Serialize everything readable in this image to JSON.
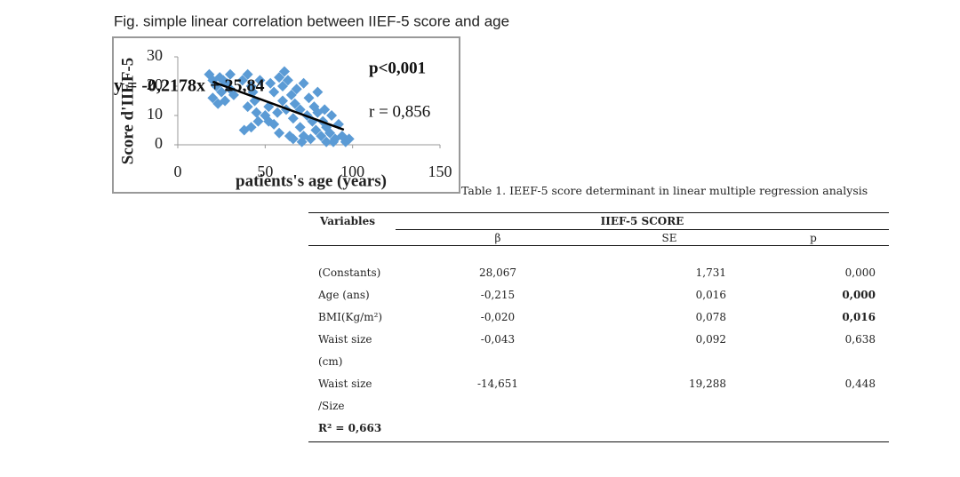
{
  "figure_caption": "Fig. simple linear correlation between IIEF-5 score and age",
  "chart_data": {
    "type": "scatter",
    "xlabel": "patients's age (years)",
    "ylabel": "Score d'IIEF-5",
    "xlim": [
      0,
      150
    ],
    "xticks": [
      0,
      50,
      100,
      150
    ],
    "ylim": [
      0,
      30
    ],
    "yticks": [
      0,
      10,
      20,
      30
    ],
    "color": "#5b9bd5",
    "x": [
      18,
      20,
      22,
      20,
      24,
      25,
      27,
      28,
      30,
      30,
      23,
      32,
      26,
      37,
      40,
      42,
      43,
      40,
      45,
      38,
      42,
      46,
      44,
      47,
      50,
      52,
      53,
      55,
      55,
      57,
      58,
      60,
      60,
      58,
      52,
      61,
      63,
      62,
      64,
      65,
      66,
      67,
      68,
      70,
      70,
      72,
      72,
      74,
      75,
      76,
      77,
      78,
      79,
      80,
      80,
      66,
      71,
      82,
      83,
      85,
      85,
      87,
      88,
      90,
      92,
      94,
      96,
      98,
      84,
      89
    ],
    "values": [
      24,
      22,
      20,
      16,
      23,
      18,
      15,
      21,
      24,
      19,
      14,
      17,
      22,
      22,
      24,
      20,
      18,
      13,
      11,
      5,
      6,
      8,
      15,
      22,
      10,
      13,
      21,
      18,
      7,
      11,
      23,
      20,
      15,
      4,
      8,
      25,
      22,
      12,
      3,
      17,
      9,
      14,
      19,
      6,
      12,
      21,
      3,
      10,
      16,
      2,
      8,
      13,
      5,
      18,
      11,
      2,
      1,
      3,
      8,
      6,
      1,
      4,
      10,
      2,
      7,
      3,
      1,
      2,
      12,
      1
    ],
    "trendline": {
      "label": "y = -0,2178x + 25,84",
      "slope": -0.2178,
      "intercept": 25.84,
      "x_range": [
        20,
        95
      ]
    },
    "annotations": [
      "p<0,001",
      "r = 0,856"
    ]
  },
  "table": {
    "caption": "Table 1. IEEF-5 score determinant in linear multiple regression analysis",
    "header": [
      "Variables",
      "IIEF-5  SCORE"
    ],
    "subheader": [
      "β",
      "SE",
      "p"
    ],
    "rows": [
      [
        "(Constants)",
        "28,067",
        "1,731",
        "0,000"
      ],
      [
        "Age (ans)",
        "-0,215",
        "0,016",
        "0,000"
      ],
      [
        "BMI(Kg/m²)",
        "-0,020",
        "0,078",
        "0,016"
      ],
      [
        "Waist size (cm)",
        "-0,043",
        "0,092",
        "0,638"
      ],
      [
        "Waist size /Size",
        "-14,651",
        "19,288",
        "0,448"
      ]
    ],
    "bold_p_rows": [
      1,
      2
    ],
    "footer": "R² = 0,663"
  }
}
